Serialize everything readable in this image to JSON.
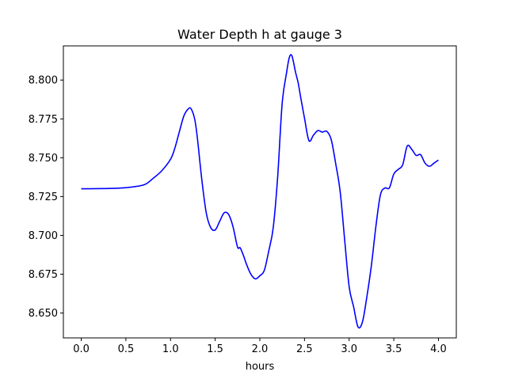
{
  "chart_data": {
    "type": "line",
    "title": "Water Depth h at gauge 3",
    "xlabel": "hours",
    "ylabel": "",
    "xlim": [
      -0.2,
      4.2
    ],
    "ylim": [
      8.634,
      8.822
    ],
    "xticks": [
      0.0,
      0.5,
      1.0,
      1.5,
      2.0,
      2.5,
      3.0,
      3.5,
      4.0
    ],
    "xtick_labels": [
      "0.0",
      "0.5",
      "1.0",
      "1.5",
      "2.0",
      "2.5",
      "3.0",
      "3.5",
      "4.0"
    ],
    "yticks": [
      8.65,
      8.675,
      8.7,
      8.725,
      8.75,
      8.775,
      8.8
    ],
    "ytick_labels": [
      "8.650",
      "8.675",
      "8.700",
      "8.725",
      "8.750",
      "8.775",
      "8.800"
    ],
    "grid": false,
    "legend": "none",
    "series": [
      {
        "color": "#0000ff",
        "x": [
          0.0,
          0.3,
          0.5,
          0.7,
          0.8,
          0.9,
          1.0,
          1.05,
          1.1,
          1.15,
          1.2,
          1.23,
          1.27,
          1.3,
          1.35,
          1.4,
          1.45,
          1.5,
          1.55,
          1.6,
          1.65,
          1.7,
          1.75,
          1.78,
          1.82,
          1.85,
          1.9,
          1.95,
          2.0,
          2.05,
          2.1,
          2.15,
          2.2,
          2.25,
          2.3,
          2.33,
          2.36,
          2.4,
          2.43,
          2.46,
          2.5,
          2.55,
          2.6,
          2.65,
          2.7,
          2.75,
          2.8,
          2.85,
          2.9,
          2.95,
          3.0,
          3.05,
          3.1,
          3.15,
          3.2,
          3.25,
          3.3,
          3.35,
          3.4,
          3.45,
          3.5,
          3.55,
          3.6,
          3.65,
          3.7,
          3.75,
          3.8,
          3.85,
          3.9,
          3.95,
          4.0
        ],
        "y": [
          8.73,
          8.7302,
          8.7307,
          8.7325,
          8.7365,
          8.7415,
          8.749,
          8.7565,
          8.767,
          8.777,
          8.7815,
          8.7815,
          8.775,
          8.763,
          8.736,
          8.7145,
          8.705,
          8.7035,
          8.709,
          8.7145,
          8.7135,
          8.7055,
          8.6925,
          8.692,
          8.6865,
          8.6815,
          8.675,
          8.672,
          8.674,
          8.6775,
          8.69,
          8.705,
          8.738,
          8.785,
          8.805,
          8.8145,
          8.8155,
          8.805,
          8.798,
          8.788,
          8.7755,
          8.761,
          8.7645,
          8.7675,
          8.7665,
          8.767,
          8.7615,
          8.746,
          8.728,
          8.697,
          8.667,
          8.654,
          8.641,
          8.6445,
          8.661,
          8.681,
          8.706,
          8.726,
          8.7305,
          8.7305,
          8.7395,
          8.7425,
          8.7455,
          8.7575,
          8.7555,
          8.7515,
          8.752,
          8.7465,
          8.7445,
          8.7465,
          8.7485
        ]
      }
    ]
  }
}
